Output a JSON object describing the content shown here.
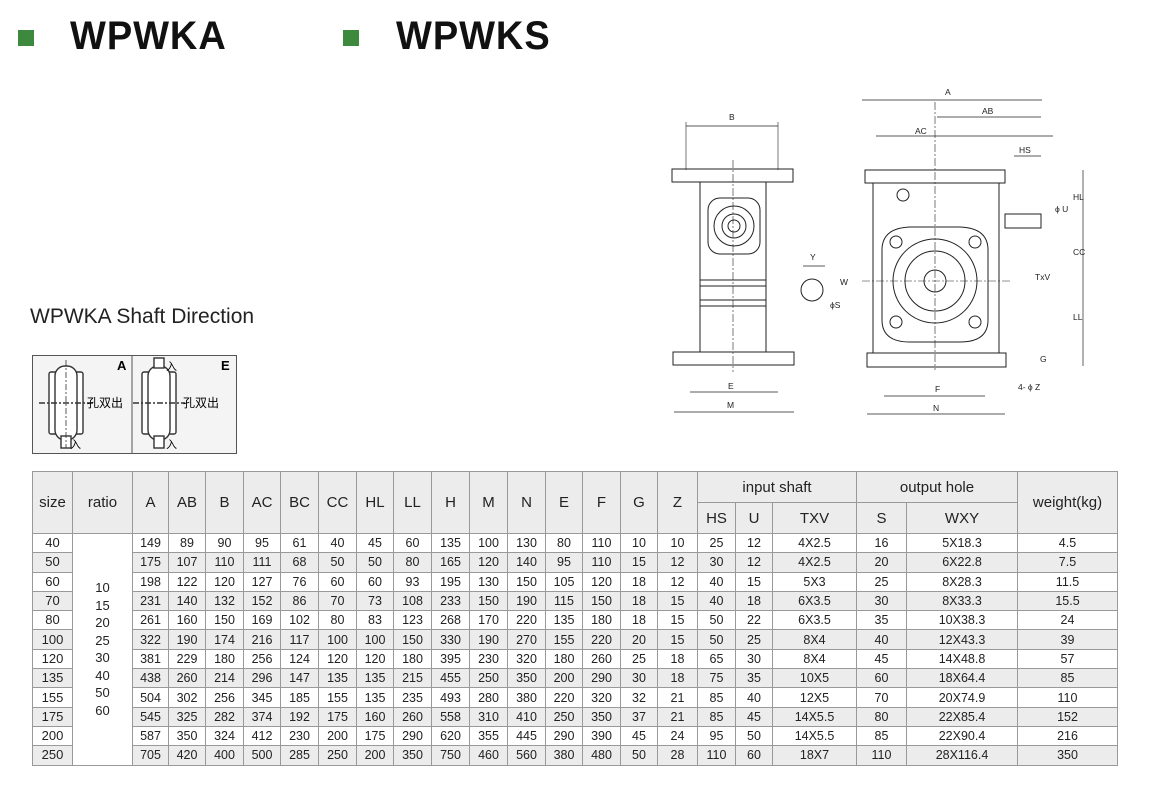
{
  "colors": {
    "accent": "#3d8a3f"
  },
  "header": {
    "model_a": "WPWKA",
    "model_s": "WPWKS"
  },
  "shaft_direction": {
    "title": "WPWKA Shaft Direction",
    "panels": [
      {
        "code": "A",
        "output": "孔双出",
        "input_bottom": "入"
      },
      {
        "code": "E",
        "output": "孔双出",
        "input_top": "入",
        "input_bottom": "入"
      }
    ]
  },
  "drawing": {
    "side_labels": [
      "B",
      "E",
      "M"
    ],
    "key_labels": [
      "Y",
      "W",
      "ϕS"
    ],
    "front_labels": [
      "A",
      "AB",
      "AC",
      "HS",
      "ϕ U",
      "HL",
      "CC",
      "TxV",
      "LL",
      "G",
      "F",
      "N",
      "4- ϕ Z"
    ]
  },
  "table": {
    "headers": [
      "size",
      "ratio",
      "A",
      "AB",
      "B",
      "AC",
      "BC",
      "CC",
      "HL",
      "LL",
      "H",
      "M",
      "N",
      "E",
      "F",
      "G",
      "Z"
    ],
    "group_input": "input  shaft",
    "group_output": "output  hole",
    "weight_header": "weight(kg)",
    "input_sub": [
      "HS",
      "U",
      "TXV"
    ],
    "output_sub": [
      "S",
      "WXY"
    ],
    "ratios": [
      "10",
      "15",
      "20",
      "25",
      "30",
      "40",
      "50",
      "60"
    ],
    "rows": [
      [
        "40",
        "149",
        "89",
        "90",
        "95",
        "61",
        "40",
        "45",
        "60",
        "135",
        "100",
        "130",
        "80",
        "110",
        "10",
        "10",
        "25",
        "12",
        "4X2.5",
        "16",
        "5X18.3",
        "4.5"
      ],
      [
        "50",
        "175",
        "107",
        "110",
        "111",
        "68",
        "50",
        "50",
        "80",
        "165",
        "120",
        "140",
        "95",
        "110",
        "15",
        "12",
        "30",
        "12",
        "4X2.5",
        "20",
        "6X22.8",
        "7.5"
      ],
      [
        "60",
        "198",
        "122",
        "120",
        "127",
        "76",
        "60",
        "60",
        "93",
        "195",
        "130",
        "150",
        "105",
        "120",
        "18",
        "12",
        "40",
        "15",
        "5X3",
        "25",
        "8X28.3",
        "11.5"
      ],
      [
        "70",
        "231",
        "140",
        "132",
        "152",
        "86",
        "70",
        "73",
        "108",
        "233",
        "150",
        "190",
        "115",
        "150",
        "18",
        "15",
        "40",
        "18",
        "6X3.5",
        "30",
        "8X33.3",
        "15.5"
      ],
      [
        "80",
        "261",
        "160",
        "150",
        "169",
        "102",
        "80",
        "83",
        "123",
        "268",
        "170",
        "220",
        "135",
        "180",
        "18",
        "15",
        "50",
        "22",
        "6X3.5",
        "35",
        "10X38.3",
        "24"
      ],
      [
        "100",
        "322",
        "190",
        "174",
        "216",
        "117",
        "100",
        "100",
        "150",
        "330",
        "190",
        "270",
        "155",
        "220",
        "20",
        "15",
        "50",
        "25",
        "8X4",
        "40",
        "12X43.3",
        "39"
      ],
      [
        "120",
        "381",
        "229",
        "180",
        "256",
        "124",
        "120",
        "120",
        "180",
        "395",
        "230",
        "320",
        "180",
        "260",
        "25",
        "18",
        "65",
        "30",
        "8X4",
        "45",
        "14X48.8",
        "57"
      ],
      [
        "135",
        "438",
        "260",
        "214",
        "296",
        "147",
        "135",
        "135",
        "215",
        "455",
        "250",
        "350",
        "200",
        "290",
        "30",
        "18",
        "75",
        "35",
        "10X5",
        "60",
        "18X64.4",
        "85"
      ],
      [
        "155",
        "504",
        "302",
        "256",
        "345",
        "185",
        "155",
        "135",
        "235",
        "493",
        "280",
        "380",
        "220",
        "320",
        "32",
        "21",
        "85",
        "40",
        "12X5",
        "70",
        "20X74.9",
        "110"
      ],
      [
        "175",
        "545",
        "325",
        "282",
        "374",
        "192",
        "175",
        "160",
        "260",
        "558",
        "310",
        "410",
        "250",
        "350",
        "37",
        "21",
        "85",
        "45",
        "14X5.5",
        "80",
        "22X85.4",
        "152"
      ],
      [
        "200",
        "587",
        "350",
        "324",
        "412",
        "230",
        "200",
        "175",
        "290",
        "620",
        "355",
        "445",
        "290",
        "390",
        "45",
        "24",
        "95",
        "50",
        "14X5.5",
        "85",
        "22X90.4",
        "216"
      ],
      [
        "250",
        "705",
        "420",
        "400",
        "500",
        "285",
        "250",
        "200",
        "350",
        "750",
        "460",
        "560",
        "380",
        "480",
        "50",
        "28",
        "110",
        "60",
        "18X7",
        "110",
        "28X116.4",
        "350"
      ]
    ]
  }
}
